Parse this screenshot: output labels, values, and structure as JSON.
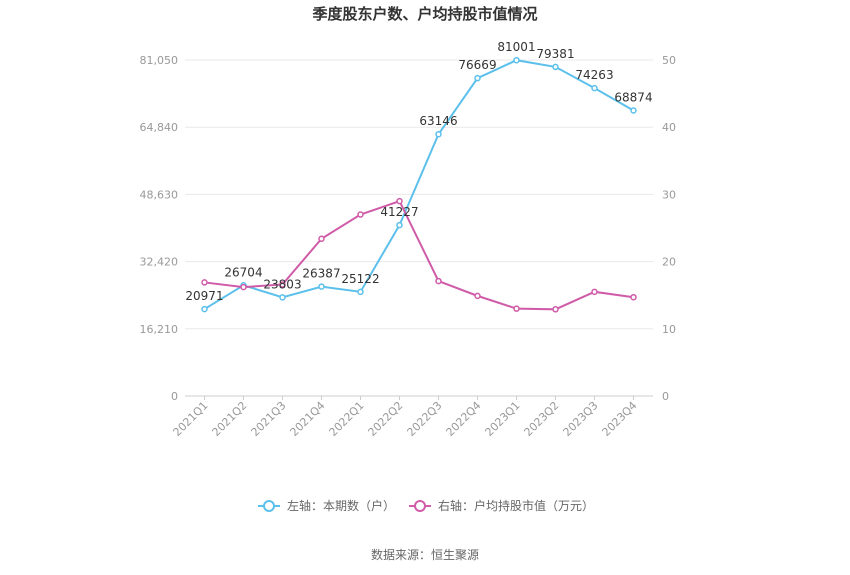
{
  "chart_data": {
    "type": "line",
    "title": "季度股东户数、户均持股市值情况",
    "categories": [
      "2021Q1",
      "2021Q2",
      "2021Q3",
      "2021Q4",
      "2022Q1",
      "2022Q2",
      "2022Q3",
      "2022Q4",
      "2023Q1",
      "2023Q2",
      "2023Q3",
      "2023Q4"
    ],
    "left_axis": {
      "ticks": [
        "0",
        "16,210",
        "32,420",
        "48,630",
        "64,840",
        "81,050"
      ],
      "ylim": [
        0,
        81050
      ]
    },
    "right_axis": {
      "ticks": [
        "0",
        "10",
        "20",
        "30",
        "40",
        "50"
      ],
      "ylim": [
        0,
        50
      ]
    },
    "series": [
      {
        "name": "左轴：本期数（户）",
        "axis": "left",
        "color": "#5bc0eb",
        "values": [
          20971,
          26704,
          23803,
          26387,
          25122,
          41227,
          63146,
          76669,
          81001,
          79381,
          74263,
          68874
        ],
        "labels": [
          "20971",
          "26704",
          "23803",
          "26387",
          "25122",
          "41227",
          "63146",
          "76669",
          "81001",
          "79381",
          "74263",
          "68874"
        ]
      },
      {
        "name": "右轴：户均持股市值（万元）",
        "axis": "right",
        "color": "#d05ba8",
        "values": [
          16.9,
          16.2,
          16.6,
          23.4,
          27.0,
          29.0,
          17.1,
          14.9,
          13.0,
          12.9,
          15.5,
          14.7
        ]
      }
    ],
    "grid": true,
    "legend_position": "bottom"
  },
  "source": "数据来源：恒生聚源"
}
